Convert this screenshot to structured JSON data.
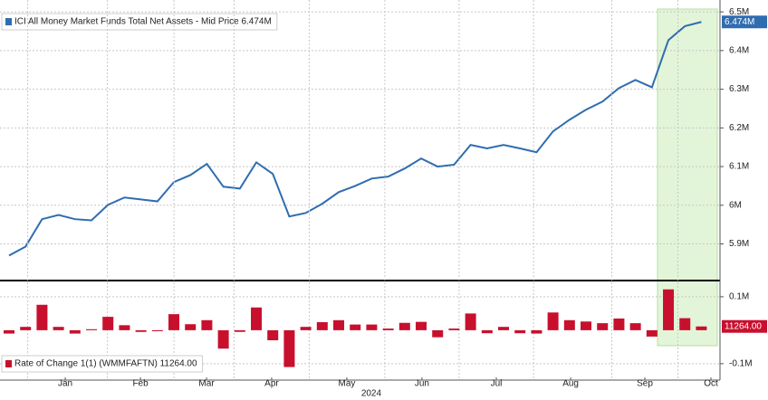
{
  "chart_data": [
    {
      "type": "line",
      "x": [
        0,
        1,
        2,
        3,
        4,
        5,
        6,
        7,
        8,
        9,
        10,
        11,
        12,
        13,
        14,
        15,
        16,
        17,
        18,
        19,
        20,
        21,
        22,
        23,
        24,
        25,
        26,
        27,
        28,
        29,
        30,
        31,
        32,
        33,
        34,
        35,
        36,
        37,
        38,
        39,
        40,
        41,
        42
      ],
      "xlim": [
        -0.55,
        43.13
      ],
      "series": [
        {
          "name": "ICI All Money Market Funds Total Net Assets - Mid Price 6.474M",
          "color": "#2f6db0",
          "values": [
            5.87,
            5.893,
            5.964,
            5.975,
            5.964,
            5.961,
            6.001,
            6.02,
            6.015,
            6.01,
            6.06,
            6.078,
            6.107,
            6.048,
            6.043,
            6.111,
            6.081,
            5.971,
            5.98,
            6.004,
            6.034,
            6.05,
            6.069,
            6.074,
            6.095,
            6.121,
            6.1,
            6.105,
            6.156,
            6.147,
            6.156,
            6.147,
            6.137,
            6.191,
            6.221,
            6.247,
            6.268,
            6.303,
            6.324,
            6.305,
            6.427,
            6.463,
            6.474
          ],
          "value_labels": [
            null,
            null,
            null,
            null,
            null,
            null,
            null,
            null,
            null,
            null,
            null,
            null,
            null,
            null,
            null,
            null,
            null,
            null,
            null,
            null,
            null,
            null,
            null,
            null,
            null,
            null,
            null,
            null,
            null,
            null,
            null,
            null,
            null,
            null,
            null,
            null,
            null,
            null,
            null,
            null,
            null,
            null,
            "6.474M"
          ]
        }
      ],
      "ylim": [
        5.81,
        6.512
      ],
      "yticks": [
        {
          "value": 5.9,
          "label": "5.9M"
        },
        {
          "value": 6.0,
          "label": "6M"
        },
        {
          "value": 6.1,
          "label": "6.1M"
        },
        {
          "value": 6.2,
          "label": "6.2M"
        },
        {
          "value": 6.3,
          "label": "6.3M"
        },
        {
          "value": 6.4,
          "label": "6.4M"
        },
        {
          "value": 6.5,
          "label": "6.5M"
        }
      ],
      "grid": true
    },
    {
      "type": "bar",
      "x": [
        0,
        1,
        2,
        3,
        4,
        5,
        6,
        7,
        8,
        9,
        10,
        11,
        12,
        13,
        14,
        15,
        16,
        17,
        18,
        19,
        20,
        21,
        22,
        23,
        24,
        25,
        26,
        27,
        28,
        29,
        30,
        31,
        32,
        33,
        34,
        35,
        36,
        37,
        38,
        39,
        40,
        41,
        42
      ],
      "xlim": [
        -0.55,
        43.13
      ],
      "xticks": [
        {
          "value": 3.41,
          "label": "Jan"
        },
        {
          "value": 7.97,
          "label": "Feb"
        },
        {
          "value": 11.98,
          "label": "Mar"
        },
        {
          "value": 15.93,
          "label": "Apr"
        },
        {
          "value": 20.49,
          "label": "May"
        },
        {
          "value": 25.05,
          "label": "Jun"
        },
        {
          "value": 29.56,
          "label": "Jul"
        },
        {
          "value": 34.07,
          "label": "Aug"
        },
        {
          "value": 38.57,
          "label": "Sep"
        },
        {
          "value": 42.58,
          "label": "Oct"
        }
      ],
      "xlabel": "2024",
      "series": [
        {
          "name": "Rate of Change 1(1) (WMMFAFTN) 11264.00",
          "color": "#c8102e",
          "values": [
            -0.01,
            0.01,
            0.076,
            0.01,
            -0.01,
            0.003,
            0.04,
            0.015,
            -0.005,
            -0.003,
            0.048,
            0.018,
            0.03,
            -0.055,
            -0.005,
            0.068,
            -0.03,
            -0.11,
            0.01,
            0.024,
            0.03,
            0.017,
            0.017,
            0.005,
            0.022,
            0.025,
            -0.021,
            0.005,
            0.05,
            -0.009,
            0.01,
            -0.009,
            -0.01,
            0.053,
            0.03,
            0.026,
            0.021,
            0.035,
            0.021,
            -0.019,
            0.122,
            0.036,
            0.011264
          ],
          "value_labels": [
            null,
            null,
            null,
            null,
            null,
            null,
            null,
            null,
            null,
            null,
            null,
            null,
            null,
            null,
            null,
            null,
            null,
            null,
            null,
            null,
            null,
            null,
            null,
            null,
            null,
            null,
            null,
            null,
            null,
            null,
            null,
            null,
            null,
            null,
            null,
            null,
            null,
            null,
            null,
            null,
            null,
            null,
            "11264.00"
          ]
        }
      ],
      "ylim": [
        -0.149,
        0.143
      ],
      "yticks": [
        {
          "value": -0.1,
          "label": "-0.1M"
        },
        {
          "value": 0.1,
          "label": "0.1M"
        }
      ],
      "grid": true
    }
  ]
}
